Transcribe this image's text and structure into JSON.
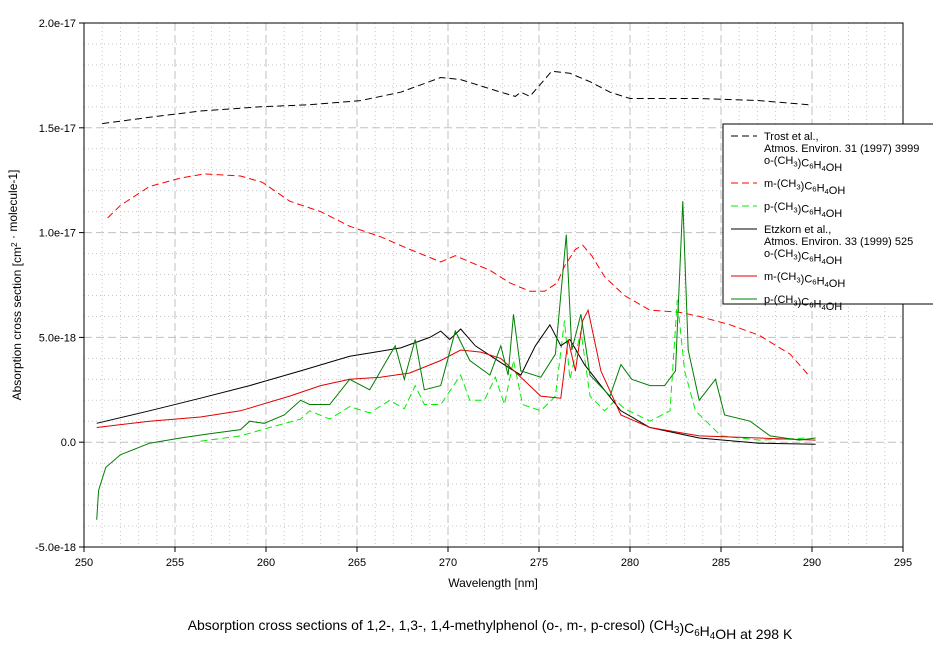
{
  "chart_data": {
    "type": "line",
    "title": "Absorption cross sections of 1,2-, 1,3-, 1,4-methylphenol (o-, m-, p-cresol) (CH3)C6H4OH at 298 K",
    "xlabel": "Wavelength [nm]",
    "ylabel": "Absorption cross section [cm2 · molecule-1]",
    "xlim": [
      250,
      295
    ],
    "ylim": [
      -5e-18,
      2e-17
    ],
    "xticks": [
      "250",
      "255",
      "260",
      "265",
      "270",
      "275",
      "280",
      "285",
      "290",
      "295"
    ],
    "yticks": [
      "-5.0e-18",
      "0.0",
      "5.0e-18",
      "1.0e-17",
      "1.5e-17",
      "2.0e-17"
    ],
    "grid": true,
    "legend_position": "right",
    "legend_groups": [
      {
        "reference_lines": [
          "Trost  et al.,",
          "Atmos. Environ. 31 (1997) 3999"
        ]
      },
      {
        "reference_lines": [
          "Etzkorn et al.,",
          "Atmos. Environ. 33 (1999) 525"
        ]
      }
    ],
    "series": [
      {
        "name": "o-(CH3)C6H4OH",
        "group": 0,
        "color": "#000000",
        "dash": true,
        "x": [
          251.0,
          253.6,
          256.4,
          259.7,
          262.4,
          265.2,
          267.4,
          269.6,
          270.7,
          271.8,
          272.9,
          273.7,
          274.0,
          274.5,
          275.5,
          275.7,
          276.7,
          277.8,
          278.9,
          280.0,
          283.8,
          287.1,
          289.8
        ],
        "y": [
          1.52e-17,
          1.55e-17,
          1.58e-17,
          1.6e-17,
          1.61e-17,
          1.63e-17,
          1.67e-17,
          1.74e-17,
          1.73e-17,
          1.7e-17,
          1.67e-17,
          1.65e-17,
          1.67e-17,
          1.65e-17,
          1.75e-17,
          1.77e-17,
          1.76e-17,
          1.72e-17,
          1.67e-17,
          1.64e-17,
          1.64e-17,
          1.63e-17,
          1.61e-17
        ]
      },
      {
        "name": "m-(CH3)C6H4OH",
        "group": 0,
        "color": "#ff0000",
        "dash": true,
        "x": [
          251.3,
          252.0,
          253.6,
          255.3,
          256.6,
          258.6,
          259.8,
          261.3,
          263.0,
          264.6,
          266.3,
          267.9,
          269.6,
          270.4,
          271.2,
          272.3,
          273.4,
          274.5,
          275.3,
          276.0,
          276.4,
          277.0,
          277.4,
          277.9,
          278.6,
          279.7,
          281.1,
          282.7,
          283.8,
          285.5,
          287.1,
          288.8,
          289.8
        ],
        "y": [
          1.07e-17,
          1.13e-17,
          1.22e-17,
          1.26e-17,
          1.28e-17,
          1.27e-17,
          1.24e-17,
          1.15e-17,
          1.1e-17,
          1.03e-17,
          9.8e-18,
          9.2e-18,
          8.6e-18,
          8.9e-18,
          8.6e-18,
          8.2e-18,
          7.6e-18,
          7.2e-18,
          7.2e-18,
          7.6e-18,
          8.4e-18,
          9.2e-18,
          9.4e-18,
          8.9e-18,
          7.9e-18,
          7e-18,
          6.3e-18,
          6.2e-18,
          6e-18,
          5.6e-18,
          5.1e-18,
          4.2e-18,
          3.2e-18
        ]
      },
      {
        "name": "p-(CH3)C6H4OH",
        "group": 0,
        "color": "#00ee00",
        "dash": true,
        "x": [
          256.4,
          258.6,
          260.2,
          261.9,
          262.4,
          263.5,
          264.6,
          265.7,
          266.8,
          267.6,
          268.2,
          268.7,
          269.6,
          270.7,
          271.2,
          272.0,
          272.6,
          273.1,
          273.6,
          274.1,
          275.1,
          275.9,
          276.4,
          276.7,
          277.3,
          277.8,
          278.6,
          279.2,
          279.7,
          281.1,
          282.2,
          282.6,
          283.0,
          283.6,
          285.0,
          287.1,
          289.8
        ],
        "y": [
          5e-20,
          3e-19,
          7e-19,
          1.1e-18,
          1.5e-18,
          1.1e-18,
          1.7e-18,
          1.4e-18,
          2e-18,
          1.6e-18,
          2.7e-18,
          1.8e-18,
          1.8e-18,
          3.2e-18,
          2e-18,
          2e-18,
          3.1e-18,
          1.8e-18,
          3.9e-18,
          1.8e-18,
          1.5e-18,
          2.2e-18,
          5.8e-18,
          3e-18,
          5.3e-18,
          2.2e-18,
          1.5e-18,
          2e-18,
          1.6e-18,
          1e-18,
          1.5e-18,
          6.8e-18,
          3.4e-18,
          1.5e-18,
          3e-19,
          1e-19,
          2e-19
        ]
      },
      {
        "name": "o-(CH3)C6H4OH",
        "group": 1,
        "color": "#000000",
        "dash": false,
        "x": [
          250.7,
          253.6,
          256.4,
          259.1,
          261.9,
          264.6,
          267.4,
          269.0,
          269.6,
          270.1,
          270.7,
          271.5,
          272.9,
          274.0,
          274.8,
          275.6,
          276.2,
          276.7,
          277.5,
          278.4,
          279.5,
          281.1,
          283.8,
          287.1,
          290.2
        ],
        "y": [
          9e-19,
          1.5e-18,
          2.1e-18,
          2.7e-18,
          3.4e-18,
          4.1e-18,
          4.5e-18,
          5e-18,
          5.3e-18,
          4.9e-18,
          5.4e-18,
          4.6e-18,
          3.8e-18,
          3.2e-18,
          4.6e-18,
          5.6e-18,
          4.6e-18,
          4.9e-18,
          3.7e-18,
          2.7e-18,
          1.5e-18,
          7e-19,
          2e-19,
          -5e-20,
          -1e-19
        ]
      },
      {
        "name": "m-(CH3)C6H4OH",
        "group": 1,
        "color": "#e00000",
        "dash": false,
        "x": [
          250.7,
          253.6,
          256.4,
          258.6,
          261.3,
          263.0,
          264.6,
          266.3,
          267.9,
          269.6,
          270.7,
          271.8,
          272.9,
          274.0,
          275.1,
          276.2,
          276.6,
          277.0,
          277.4,
          277.7,
          278.4,
          279.5,
          281.1,
          283.8,
          287.1,
          290.2
        ],
        "y": [
          7e-19,
          1e-18,
          1.2e-18,
          1.5e-18,
          2.2e-18,
          2.7e-18,
          3e-18,
          3.1e-18,
          3.3e-18,
          3.9e-18,
          4.4e-18,
          4.3e-18,
          4e-18,
          3.1e-18,
          2.2e-18,
          2.1e-18,
          4.9e-18,
          3.4e-18,
          5.8e-18,
          6.3e-18,
          3.4e-18,
          1.3e-18,
          7e-19,
          3e-19,
          2e-19,
          1e-19
        ]
      },
      {
        "name": "p-(CH3)C6H4OH",
        "group": 1,
        "color": "#007f00",
        "dash": false,
        "x": [
          250.7,
          250.8,
          251.2,
          252.0,
          253.6,
          255.3,
          256.9,
          258.6,
          259.1,
          259.9,
          261.0,
          261.9,
          262.4,
          263.5,
          264.6,
          265.7,
          267.1,
          267.6,
          268.2,
          268.7,
          269.6,
          270.4,
          271.2,
          272.3,
          272.9,
          273.3,
          273.6,
          274.0,
          275.1,
          275.9,
          276.5,
          276.8,
          277.3,
          277.8,
          278.9,
          279.5,
          280.1,
          281.1,
          281.9,
          282.5,
          282.9,
          283.2,
          283.8,
          284.7,
          285.2,
          286.6,
          287.7,
          289.3,
          290.2
        ],
        "y": [
          -3.7e-18,
          -2.3e-18,
          -1.2e-18,
          -6e-19,
          -5e-20,
          2e-19,
          4e-19,
          6e-19,
          1e-18,
          9e-19,
          1.3e-18,
          2e-18,
          1.8e-18,
          1.8e-18,
          3e-18,
          2.5e-18,
          4.6e-18,
          3e-18,
          4.9e-18,
          2.5e-18,
          2.7e-18,
          5.3e-18,
          3.9e-18,
          3.2e-18,
          4.6e-18,
          3.2e-18,
          6.1e-18,
          3.4e-18,
          3.1e-18,
          4.2e-18,
          9.9e-18,
          4.4e-18,
          6.1e-18,
          3.2e-18,
          2.2e-18,
          3.7e-18,
          3e-18,
          2.7e-18,
          2.7e-18,
          3.4e-18,
          1.15e-17,
          4.4e-18,
          2e-18,
          3e-18,
          1.3e-18,
          1e-18,
          3e-19,
          1e-19,
          2e-19
        ]
      }
    ]
  }
}
